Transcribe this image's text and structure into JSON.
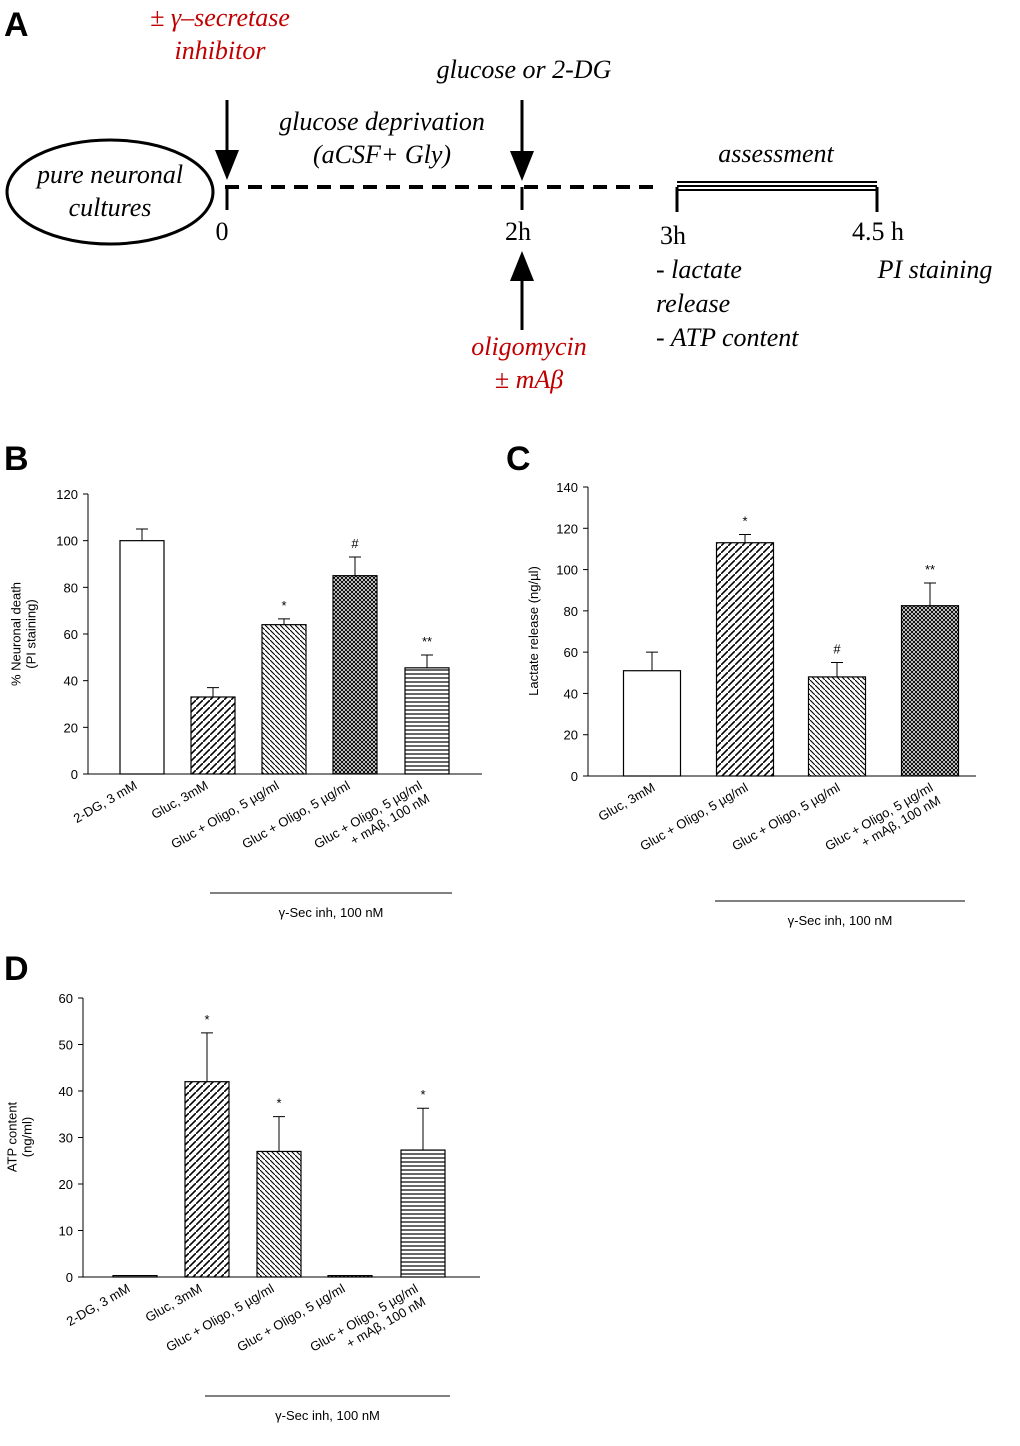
{
  "panel_a": {
    "letter": "A",
    "inhibitor": [
      "± γ–secretase",
      "inhibitor"
    ],
    "glucose_return": "glucose or 2-DG",
    "deprivation": [
      "glucose deprivation",
      "(aCSF+ Gly)"
    ],
    "cultures": [
      "pure neuronal",
      "cultures"
    ],
    "assessment": "assessment",
    "times": [
      "0",
      "2h",
      "3h",
      "4.5 h"
    ],
    "measures": [
      "- lactate",
      "release",
      "- ATP content"
    ],
    "pi": "PI staining",
    "oligomycin": [
      "oligomycin",
      "± mAβ"
    ]
  },
  "chart_data": [
    {
      "type": "bar",
      "letter": "B",
      "ylabel": [
        "% Neuronal death",
        "(PI staining)"
      ],
      "categories": [
        [
          "2-DG, 3 mM"
        ],
        [
          "Gluc, 3mM"
        ],
        [
          "Gluc + Oligo, 5 µg/ml"
        ],
        [
          "Gluc + Oligo, 5 µg/ml"
        ],
        [
          "Gluc + Oligo, 5 µg/ml",
          "+ mAβ, 100 nM"
        ]
      ],
      "values": [
        100,
        33,
        64,
        85,
        45.5
      ],
      "errors": [
        5,
        4,
        2.5,
        8,
        5.5
      ],
      "annotations": [
        null,
        null,
        "*",
        "#",
        "**"
      ],
      "group_label": "γ-Sec inh, 100 nM",
      "ylim": [
        0,
        120
      ],
      "yticks": [
        0,
        20,
        40,
        60,
        80,
        100,
        120
      ]
    },
    {
      "type": "bar",
      "letter": "C",
      "ylabel": [
        "Lactate release (ng/µl)"
      ],
      "categories": [
        [
          "Gluc, 3mM"
        ],
        [
          "Gluc + Oligo, 5 µg/ml"
        ],
        [
          "Gluc + Oligo, 5 µg/ml"
        ],
        [
          "Gluc + Oligo, 5 µg/ml",
          "+ mAβ, 100 nM"
        ]
      ],
      "values": [
        51,
        113,
        48,
        82.5
      ],
      "errors": [
        9,
        4,
        7,
        11
      ],
      "annotations": [
        null,
        "*",
        "#",
        "**"
      ],
      "group_label": "γ-Sec inh, 100 nM",
      "ylim": [
        0,
        140
      ],
      "yticks": [
        0,
        20,
        40,
        60,
        80,
        100,
        120,
        140
      ]
    },
    {
      "type": "bar",
      "letter": "D",
      "ylabel": [
        "ATP content",
        "(ng/ml)"
      ],
      "categories": [
        [
          "2-DG, 3 mM"
        ],
        [
          "Gluc, 3mM"
        ],
        [
          "Gluc + Oligo, 5 µg/ml"
        ],
        [
          "Gluc + Oligo, 5 µg/ml"
        ],
        [
          "Gluc + Oligo, 5 µg/ml",
          "+ mAβ, 100 nM"
        ]
      ],
      "values": [
        0.3,
        42,
        27,
        0.3,
        27.3
      ],
      "errors": [
        0,
        10.5,
        7.5,
        0,
        9
      ],
      "annotations": [
        null,
        "*",
        "*",
        null,
        "*"
      ],
      "group_label": "γ-Sec inh, 100 nM",
      "ylim": [
        0,
        60
      ],
      "yticks": [
        0,
        10,
        20,
        30,
        40,
        50,
        60
      ]
    }
  ]
}
